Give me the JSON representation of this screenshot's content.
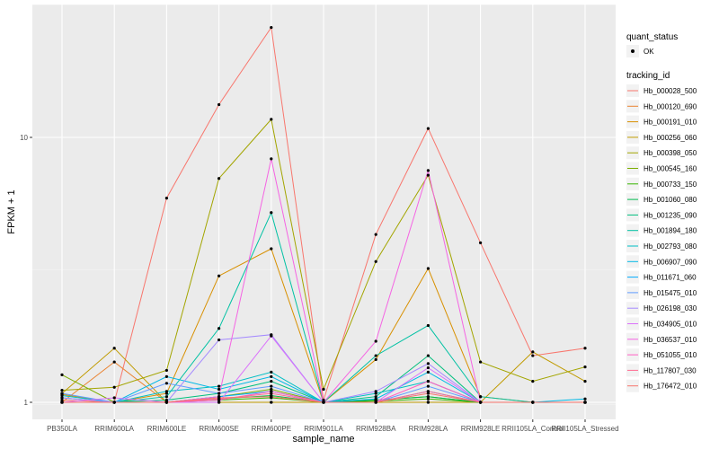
{
  "chart_data": {
    "type": "line",
    "xlabel": "sample_name",
    "ylabel": "FPKM + 1",
    "y_scale": "log10",
    "ylim": [
      0.96,
      26
    ],
    "y_ticks": [
      {
        "value": 1,
        "label": "1"
      },
      {
        "value": 10,
        "label": "10"
      }
    ],
    "categories": [
      "PB350LA",
      "RRIM600LA",
      "RRIM600LE",
      "RRIM600SE",
      "RRIM600PE",
      "RRIM901LA",
      "RRIM928BA",
      "RRIM928LA",
      "RRIM928LE",
      "RRII105LA_Control",
      "RRII105LA_Stressed"
    ],
    "grid": true,
    "legend_position": "right",
    "legend_quant": {
      "title": "quant_status",
      "items": [
        "OK"
      ]
    },
    "legend_tracking_title": "tracking_id",
    "series": [
      {
        "name": "Hb_000028_500",
        "color": "#F8766D",
        "values": [
          1.02,
          1.0,
          5.9,
          13.3,
          26.0,
          1.02,
          4.3,
          10.8,
          4.0,
          1.5,
          1.6
        ]
      },
      {
        "name": "Hb_000120_690",
        "color": "#EA8331",
        "values": [
          1.0,
          1.42,
          1.0,
          1.0,
          1.0,
          1.0,
          1.0,
          1.0,
          1.0,
          1.0,
          1.0
        ]
      },
      {
        "name": "Hb_000191_010",
        "color": "#D89000",
        "values": [
          1.07,
          1.0,
          1.08,
          3.0,
          3.8,
          1.0,
          1.45,
          3.2,
          1.05,
          1.0,
          1.0
        ]
      },
      {
        "name": "Hb_000256_060",
        "color": "#C09B00",
        "values": [
          1.08,
          1.6,
          1.0,
          1.0,
          1.0,
          1.0,
          1.0,
          1.0,
          1.0,
          1.55,
          1.2
        ]
      },
      {
        "name": "Hb_000398_050",
        "color": "#A3A500",
        "values": [
          1.11,
          1.14,
          1.32,
          7.0,
          11.7,
          1.12,
          3.4,
          7.2,
          1.42,
          1.2,
          1.36
        ]
      },
      {
        "name": "Hb_000545_160",
        "color": "#7CAE00",
        "values": [
          1.27,
          1.0,
          1.0,
          1.05,
          1.12,
          1.0,
          1.02,
          1.05,
          1.0,
          1.0,
          1.0
        ]
      },
      {
        "name": "Hb_000733_150",
        "color": "#39B600",
        "values": [
          1.0,
          1.0,
          1.0,
          1.02,
          1.04,
          1.0,
          1.01,
          1.03,
          1.0,
          1.0,
          1.0
        ]
      },
      {
        "name": "Hb_001060_080",
        "color": "#00BB4E",
        "values": [
          1.0,
          1.0,
          1.0,
          1.03,
          1.06,
          1.0,
          1.02,
          1.05,
          1.0,
          1.0,
          1.0
        ]
      },
      {
        "name": "Hb_001235_090",
        "color": "#00BF7D",
        "values": [
          1.0,
          1.0,
          1.02,
          1.08,
          1.2,
          1.0,
          1.05,
          1.5,
          1.0,
          1.0,
          1.0
        ]
      },
      {
        "name": "Hb_001894_180",
        "color": "#00C1A3",
        "values": [
          1.04,
          1.0,
          1.05,
          1.9,
          5.2,
          1.0,
          1.5,
          1.95,
          1.05,
          1.0,
          1.0
        ]
      },
      {
        "name": "Hb_002793_080",
        "color": "#00BFC4",
        "values": [
          1.06,
          1.0,
          1.1,
          1.15,
          1.3,
          1.0,
          1.08,
          1.2,
          1.0,
          1.0,
          1.0
        ]
      },
      {
        "name": "Hb_006907_090",
        "color": "#00B8E5",
        "values": [
          1.0,
          1.0,
          1.25,
          1.12,
          1.25,
          1.0,
          1.03,
          1.3,
          1.0,
          1.0,
          1.03
        ]
      },
      {
        "name": "Hb_011671_060",
        "color": "#00ABFD",
        "values": [
          1.0,
          1.0,
          1.0,
          1.05,
          1.1,
          1.0,
          1.0,
          1.1,
          1.0,
          1.0,
          1.0
        ]
      },
      {
        "name": "Hb_015475_010",
        "color": "#619CFF",
        "values": [
          1.08,
          1.0,
          1.18,
          1.08,
          1.15,
          1.0,
          1.0,
          1.15,
          1.0,
          1.0,
          1.0
        ]
      },
      {
        "name": "Hb_026198_030",
        "color": "#A58AFF",
        "values": [
          1.04,
          1.0,
          1.0,
          1.72,
          1.8,
          1.0,
          1.1,
          1.4,
          1.0,
          1.0,
          1.0
        ]
      },
      {
        "name": "Hb_034905_010",
        "color": "#DB72FB",
        "values": [
          1.0,
          1.04,
          1.0,
          1.0,
          1.78,
          1.0,
          1.0,
          1.35,
          1.0,
          1.0,
          1.0
        ]
      },
      {
        "name": "Hb_036537_010",
        "color": "#F564E3",
        "values": [
          1.0,
          1.0,
          1.0,
          1.05,
          8.3,
          1.0,
          1.7,
          7.5,
          1.0,
          1.0,
          1.0
        ]
      },
      {
        "name": "Hb_051055_010",
        "color": "#FF61C3",
        "values": [
          1.0,
          1.0,
          1.0,
          1.02,
          1.1,
          1.0,
          1.0,
          1.2,
          1.0,
          1.0,
          1.0
        ]
      },
      {
        "name": "Hb_117807_030",
        "color": "#FF6C91",
        "values": [
          1.0,
          1.0,
          1.0,
          1.03,
          1.08,
          1.0,
          1.0,
          1.1,
          1.0,
          1.0,
          1.0
        ]
      },
      {
        "name": "Hb_176472_010",
        "color": "#F8766D",
        "values": [
          1.0,
          1.0,
          1.0,
          1.04,
          1.05,
          1.0,
          1.0,
          1.08,
          1.0,
          1.0,
          1.0
        ]
      }
    ]
  }
}
